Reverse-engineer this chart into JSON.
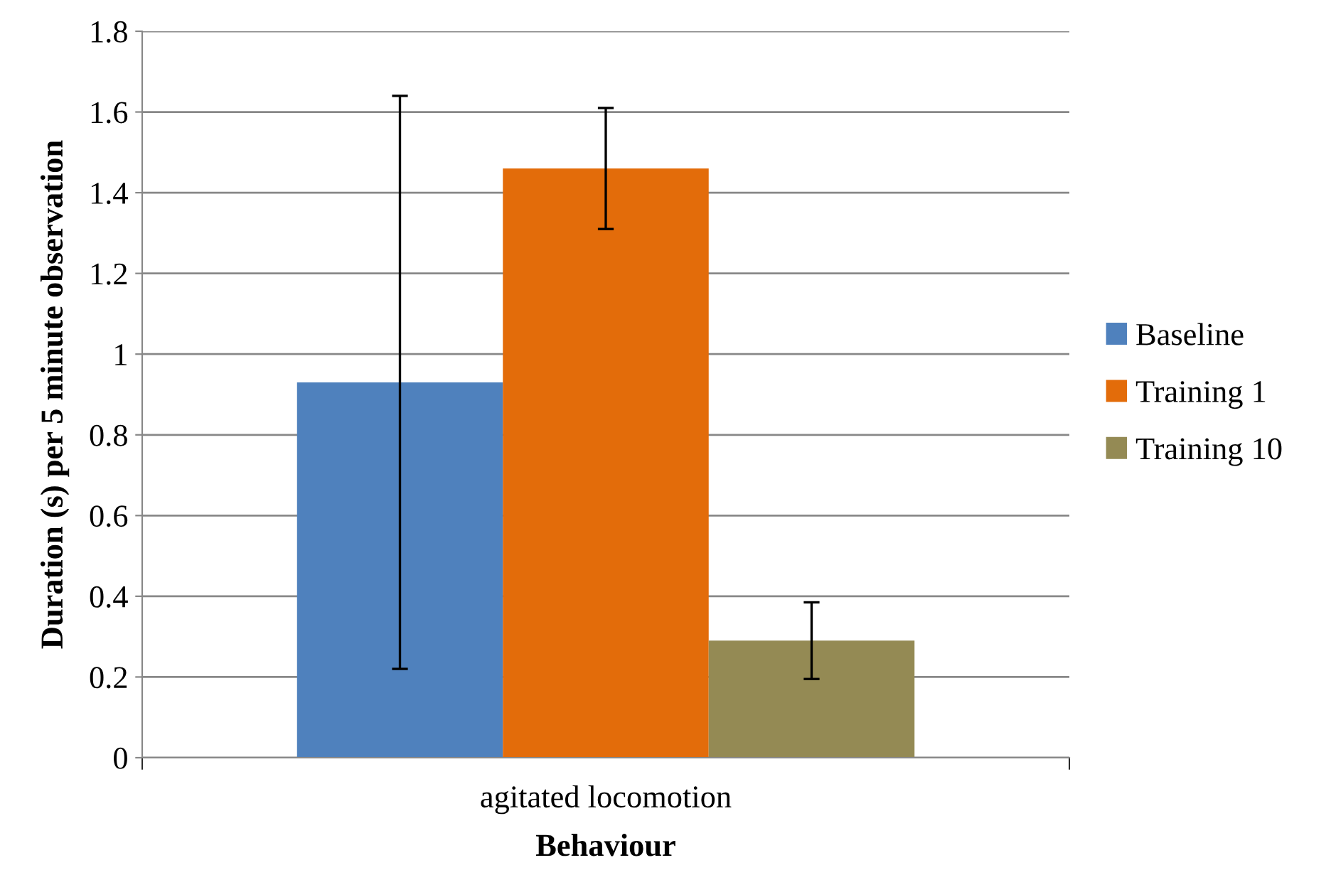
{
  "chart_data": {
    "type": "bar",
    "xlabel": "Behaviour",
    "ylabel": "Duration (s) per 5 minute observation",
    "categories": [
      "agitated locomotion"
    ],
    "series": [
      {
        "name": "Baseline",
        "color": "#4f81bd",
        "values": [
          0.93
        ],
        "errors": [
          0.71
        ]
      },
      {
        "name": "Training 1",
        "color": "#e36c0a",
        "values": [
          1.46
        ],
        "errors": [
          0.15
        ]
      },
      {
        "name": "Training 10",
        "color": "#948a54",
        "values": [
          0.29
        ],
        "errors": [
          0.095
        ]
      }
    ],
    "ylim": [
      0,
      1.8
    ],
    "yticks": [
      0,
      0.2,
      0.4,
      0.6,
      0.8,
      1,
      1.2,
      1.4,
      1.6,
      1.8
    ],
    "grid": "y",
    "legend": "right"
  }
}
